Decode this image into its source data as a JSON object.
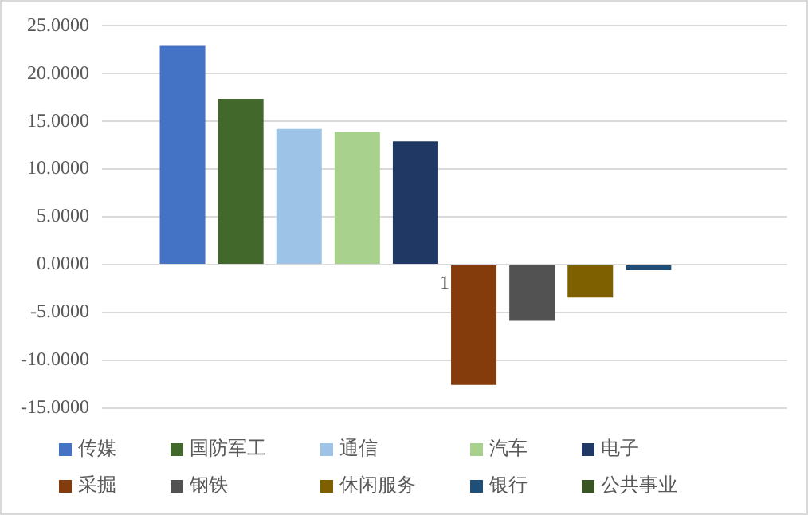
{
  "chart_data": {
    "type": "bar",
    "categories": [
      "1"
    ],
    "series": [
      {
        "name": "传媒",
        "color": "#4472c4",
        "values": [
          22.9
        ]
      },
      {
        "name": "国防军工",
        "color": "#43682b",
        "values": [
          17.35
        ]
      },
      {
        "name": "通信",
        "color": "#9dc3e6",
        "values": [
          14.2
        ]
      },
      {
        "name": "汽车",
        "color": "#a9d18e",
        "values": [
          13.9
        ]
      },
      {
        "name": "电子",
        "color": "#203864",
        "values": [
          12.9
        ]
      },
      {
        "name": "采掘",
        "color": "#843c0c",
        "values": [
          -12.6
        ]
      },
      {
        "name": "钢铁",
        "color": "#525252",
        "values": [
          -5.9
        ]
      },
      {
        "name": "休闲服务",
        "color": "#7f6000",
        "values": [
          -3.45
        ]
      },
      {
        "name": "银行",
        "color": "#1f4e79",
        "values": [
          -0.6
        ]
      },
      {
        "name": "公共事业",
        "color": "#375623",
        "values": [
          0
        ]
      }
    ],
    "ylim": [
      -15,
      25
    ],
    "yticks": [
      {
        "value": -15,
        "label": "-15.0000"
      },
      {
        "value": -10,
        "label": "-10.0000"
      },
      {
        "value": -5,
        "label": "-5.0000"
      },
      {
        "value": 0,
        "label": "0.0000"
      },
      {
        "value": 5,
        "label": "5.0000"
      },
      {
        "value": 10,
        "label": "10.0000"
      },
      {
        "value": 15,
        "label": "15.0000"
      },
      {
        "value": 20,
        "label": "20.0000"
      },
      {
        "value": 25,
        "label": "25.0000"
      }
    ],
    "grid": "y",
    "legend": "bottom"
  }
}
